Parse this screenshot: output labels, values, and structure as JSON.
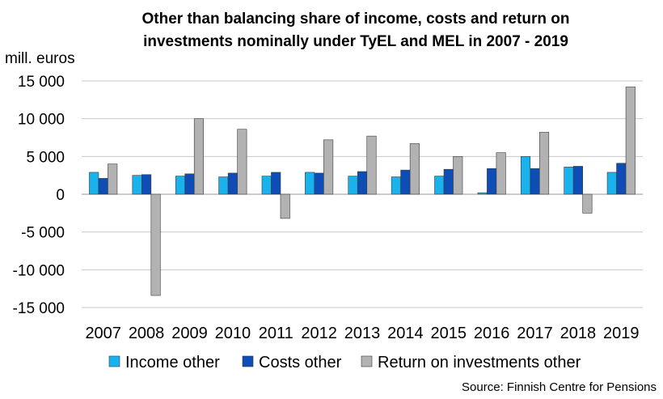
{
  "chart_data": {
    "type": "bar",
    "title": "Other than balancing share of income, costs  and return on investments nominally under TyEL and MEL in 2007 - 2019",
    "title_lines": [
      "Other than balancing share of income, costs  and return on",
      "investments nominally under TyEL and MEL in 2007 - 2019"
    ],
    "unit_label": "mill. euros",
    "source": "Source: Finnish Centre for Pensions",
    "categories": [
      "2007",
      "2008",
      "2009",
      "2010",
      "2011",
      "2012",
      "2013",
      "2014",
      "2015",
      "2016",
      "2017",
      "2018",
      "2019"
    ],
    "ylim": [
      -15000,
      15000
    ],
    "yticks": [
      15000,
      10000,
      5000,
      0,
      -5000,
      -10000,
      -15000
    ],
    "ytick_labels": [
      "15 000",
      "10 000",
      "5 000",
      "0",
      "-5 000",
      "-10 000",
      "-15 000"
    ],
    "grid": true,
    "legend_position": "bottom",
    "series": [
      {
        "name": "Income other",
        "color": "#1ab2ec",
        "values": [
          2900,
          2500,
          2400,
          2300,
          2400,
          2900,
          2400,
          2300,
          2400,
          200,
          5000,
          3600,
          2900
        ]
      },
      {
        "name": "Costs other",
        "color": "#0d4db5",
        "values": [
          2100,
          2600,
          2700,
          2800,
          2900,
          2800,
          3000,
          3200,
          3300,
          3400,
          3400,
          3700,
          4100
        ]
      },
      {
        "name": "Return on investments other",
        "color": "#b2b2b2",
        "values": [
          4000,
          -13400,
          10000,
          8600,
          -3200,
          7200,
          7700,
          6700,
          5000,
          5500,
          8200,
          -2500,
          14200
        ]
      }
    ]
  }
}
